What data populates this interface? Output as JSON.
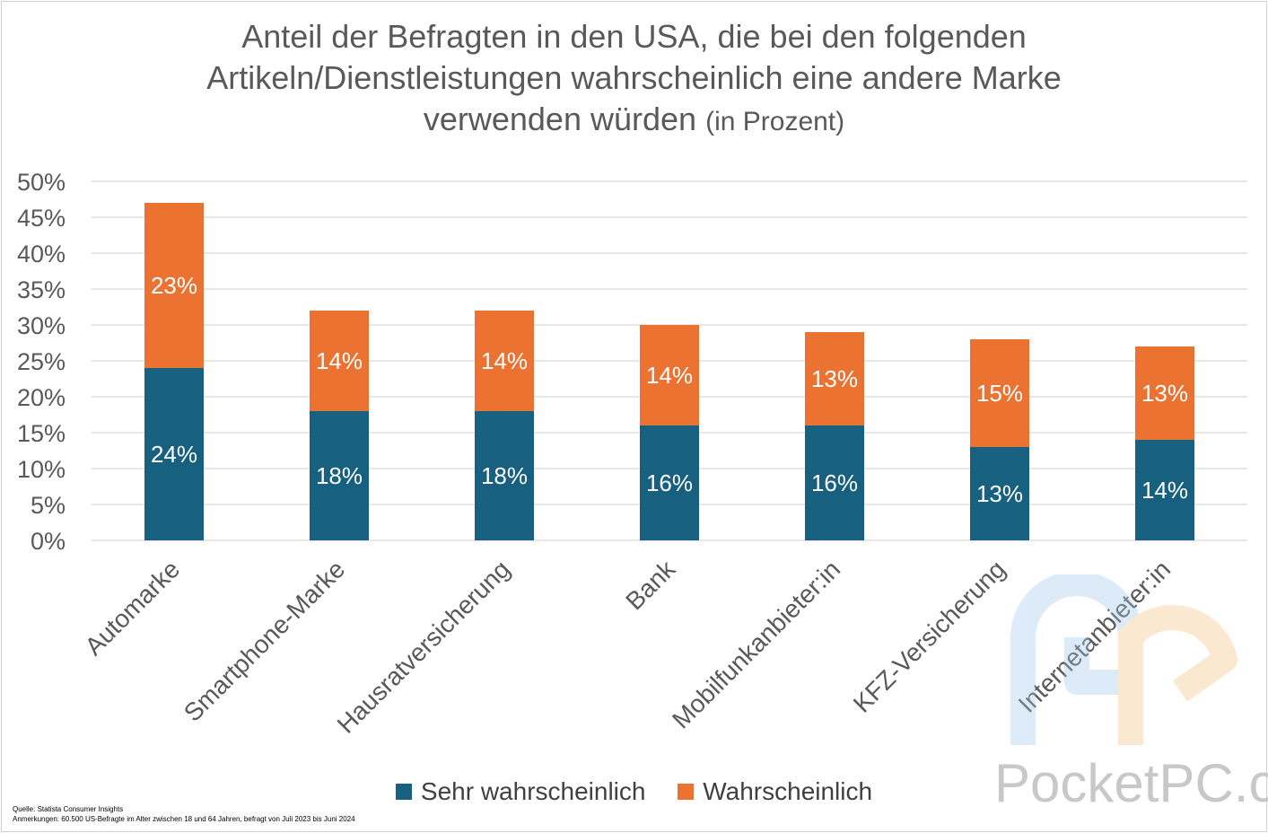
{
  "title_main": "Anteil der Befragten in den USA, die bei den folgenden Artikeln/Dienstleistungen wahrscheinlich eine andere Marke verwenden würden",
  "title_unit": "(in Prozent)",
  "chart_data": {
    "type": "bar",
    "stacked": true,
    "categories": [
      "Automarke",
      "Smartphone-Marke",
      "Hausratversicherung",
      "Bank",
      "Mobilfunkanbieter:in",
      "KFZ-Versicherung",
      "Internetanbieter:in"
    ],
    "series": [
      {
        "name": "Sehr wahrscheinlich",
        "color": "#17607f",
        "values": [
          24,
          18,
          18,
          16,
          16,
          13,
          14
        ],
        "labels": [
          "24%",
          "18%",
          "18%",
          "16%",
          "16%",
          "13%",
          "14%"
        ]
      },
      {
        "name": "Wahrscheinlich",
        "color": "#ec7232",
        "values": [
          23,
          14,
          14,
          14,
          13,
          15,
          13
        ],
        "labels": [
          "23%",
          "14%",
          "14%",
          "14%",
          "13%",
          "15%",
          "13%"
        ]
      }
    ],
    "ylim": [
      0,
      50
    ],
    "yticks": [
      0,
      5,
      10,
      15,
      20,
      25,
      30,
      35,
      40,
      45,
      50
    ],
    "ytick_labels": [
      "0%",
      "5%",
      "10%",
      "15%",
      "20%",
      "25%",
      "30%",
      "35%",
      "40%",
      "45%",
      "50%"
    ],
    "grid": true,
    "legend": "bottom"
  },
  "source": "Quelle: Statista Consumer Insights",
  "notes": "Anmerkungen: 60.500 US-Befragte im Alter zwischen 18 und 64 Jahren, befragt von Juli 2023 bis Juni 2024",
  "watermark": "PocketPC.ch"
}
